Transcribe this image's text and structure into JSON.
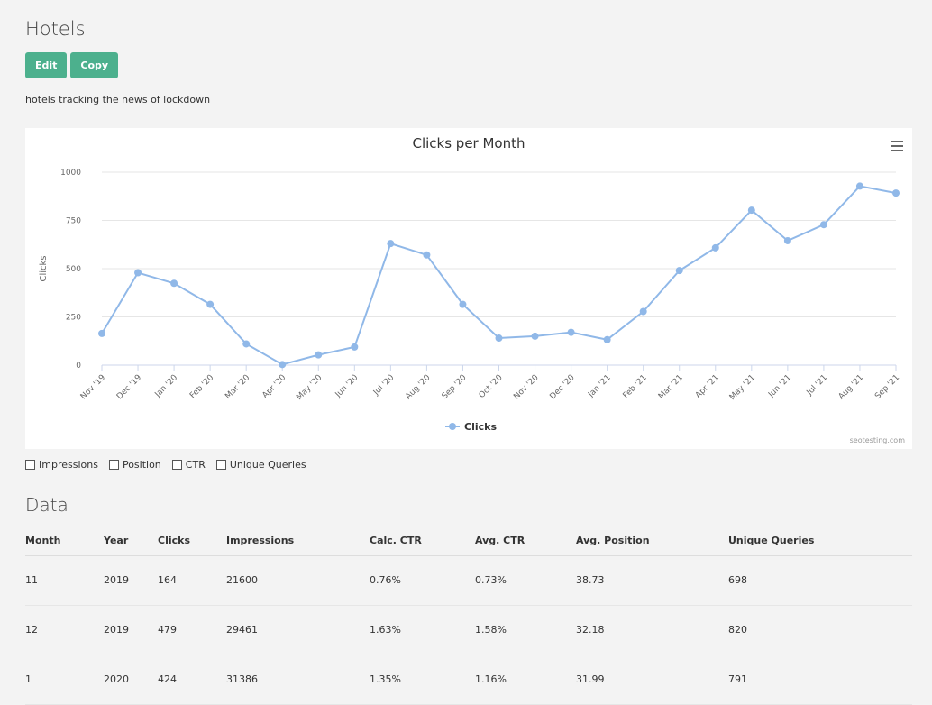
{
  "page": {
    "title": "Hotels",
    "description": "hotels tracking the news of lockdown"
  },
  "toolbar": {
    "edit_label": "Edit",
    "copy_label": "Copy"
  },
  "chart_data": {
    "type": "line",
    "title": "Clicks per Month",
    "ylabel": "Clicks",
    "xlabel": "",
    "ylim": [
      0,
      1000
    ],
    "yticks": [
      "0",
      "250",
      "500",
      "750",
      "1000"
    ],
    "categories": [
      "Nov '19",
      "Dec '19",
      "Jan '20",
      "Feb '20",
      "Mar '20",
      "Apr '20",
      "May '20",
      "Jun '20",
      "Jul '20",
      "Aug '20",
      "Sep '20",
      "Oct '20",
      "Nov '20",
      "Dec '20",
      "Jan '21",
      "Feb '21",
      "Mar '21",
      "Apr '21",
      "May '21",
      "Jun '21",
      "Jul '21",
      "Aug '21",
      "Sep '21"
    ],
    "series": [
      {
        "name": "Clicks",
        "color": "#90b8e8",
        "values": [
          164,
          479,
          424,
          315,
          110,
          3,
          53,
          94,
          630,
          571,
          315,
          140,
          150,
          170,
          132,
          278,
          490,
          608,
          803,
          645,
          728,
          928,
          892
        ]
      }
    ],
    "grid": true,
    "legend": "bottom-center",
    "credit": "seotesting.com"
  },
  "toggles": [
    {
      "label": "Impressions",
      "checked": false
    },
    {
      "label": "Position",
      "checked": false
    },
    {
      "label": "CTR",
      "checked": false
    },
    {
      "label": "Unique Queries",
      "checked": false
    }
  ],
  "table": {
    "title": "Data",
    "columns": [
      "Month",
      "Year",
      "Clicks",
      "Impressions",
      "Calc. CTR",
      "Avg. CTR",
      "Avg. Position",
      "Unique Queries"
    ],
    "rows": [
      [
        "11",
        "2019",
        "164",
        "21600",
        "0.76%",
        "0.73%",
        "38.73",
        "698"
      ],
      [
        "12",
        "2019",
        "479",
        "29461",
        "1.63%",
        "1.58%",
        "32.18",
        "820"
      ],
      [
        "1",
        "2020",
        "424",
        "31386",
        "1.35%",
        "1.16%",
        "31.99",
        "791"
      ]
    ]
  }
}
